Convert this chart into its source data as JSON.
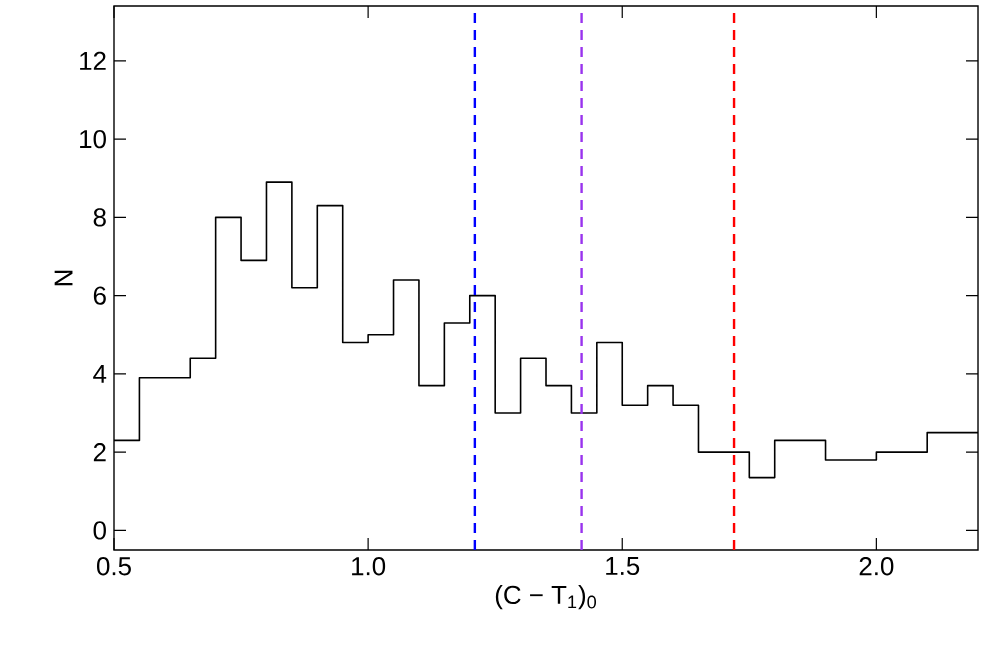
{
  "chart_data": {
    "type": "histogram",
    "xlabel": "(C − T$_{1}$)$_{0}$",
    "ylabel": "N",
    "bins": [
      0.5,
      0.55,
      0.6,
      0.65,
      0.7,
      0.75,
      0.8,
      0.85,
      0.9,
      0.95,
      1.0,
      1.05,
      1.1,
      1.15,
      1.2,
      1.25,
      1.3,
      1.35,
      1.4,
      1.45,
      1.5,
      1.55,
      1.6,
      1.65,
      1.7,
      1.75,
      1.8,
      1.85,
      1.9,
      1.95,
      2.0,
      2.05,
      2.1,
      2.15,
      2.2
    ],
    "values": [
      2.3,
      3.9,
      3.9,
      4.4,
      8.0,
      6.9,
      8.9,
      6.2,
      8.3,
      4.8,
      5.0,
      6.4,
      3.7,
      5.3,
      6.0,
      3.0,
      4.4,
      3.7,
      3.0,
      4.8,
      3.2,
      3.7,
      3.2,
      2.0,
      2.0,
      1.35,
      2.3,
      2.3,
      1.8,
      1.8,
      2.0,
      2.0,
      2.5,
      2.5
    ],
    "color": "#000000",
    "xlim": [
      0.5,
      2.2
    ],
    "ylim": [
      -0.5,
      13.4
    ],
    "xticks": [
      {
        "value": 0.5,
        "label": "0.5"
      },
      {
        "value": 1.0,
        "label": "1.0"
      },
      {
        "value": 1.5,
        "label": "1.5"
      },
      {
        "value": 2.0,
        "label": "2.0"
      }
    ],
    "yticks": [
      0,
      2,
      4,
      6,
      8,
      10,
      12
    ],
    "ref_lines": [
      {
        "axis": "x",
        "value": 1.21,
        "color": "#0000ff",
        "line_style": "dashed"
      },
      {
        "axis": "x",
        "value": 1.42,
        "color": "#9933ee",
        "line_style": "dashed"
      },
      {
        "axis": "x",
        "value": 1.72,
        "color": "#ff0000",
        "line_style": "dashed"
      }
    ],
    "marker": "none"
  }
}
